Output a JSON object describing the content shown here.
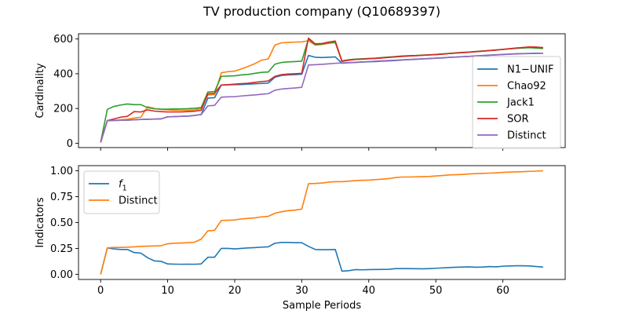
{
  "figure": {
    "title": "TV production company (Q10689397)"
  },
  "chart_data": [
    {
      "type": "line",
      "ylabel": "Cardinality",
      "xlabel": "",
      "xlim": [
        -3.3,
        69.3
      ],
      "ylim": [
        -25,
        630
      ],
      "xticks": [
        0,
        10,
        20,
        30,
        40,
        50,
        60
      ],
      "xtick_labels": [
        "",
        "",
        "",
        "",
        "",
        "",
        ""
      ],
      "yticks": [
        0,
        200,
        400,
        600
      ],
      "ytick_labels": [
        "0",
        "200",
        "400",
        "600"
      ],
      "legend": "right",
      "grid": false,
      "series": [
        {
          "name": "N1−UNIF",
          "color": "#1f77b4",
          "x": [
            0,
            1,
            2,
            3,
            4,
            5,
            6,
            7,
            8,
            9,
            10,
            11,
            12,
            13,
            14,
            15,
            16,
            17,
            18,
            19,
            20,
            21,
            22,
            23,
            24,
            25,
            26,
            27,
            28,
            29,
            30,
            31,
            32,
            33,
            34,
            35,
            36,
            37,
            38,
            39,
            40,
            41,
            42,
            43,
            44,
            45,
            46,
            47,
            48,
            49,
            50,
            51,
            52,
            53,
            54,
            55,
            56,
            57,
            58,
            59,
            60,
            61,
            62,
            63,
            64,
            65,
            66
          ],
          "y": [
            5,
            130,
            131,
            132,
            133,
            135,
            137,
            138,
            139,
            140,
            152,
            153,
            155,
            156,
            160,
            165,
            260,
            262,
            335,
            336,
            337,
            338,
            340,
            342,
            344,
            346,
            380,
            390,
            393,
            395,
            397,
            505,
            495,
            493,
            495,
            497,
            460,
            463,
            465,
            467,
            469,
            470,
            472,
            474,
            476,
            479,
            481,
            483,
            485,
            487,
            489,
            491,
            494,
            496,
            498,
            500,
            503,
            505,
            507,
            509,
            511,
            513,
            515,
            516,
            517,
            518,
            518
          ]
        },
        {
          "name": "Chao92",
          "color": "#ff7f0e",
          "x": [
            0,
            1,
            2,
            3,
            4,
            5,
            6,
            7,
            8,
            9,
            10,
            11,
            12,
            13,
            14,
            15,
            16,
            17,
            18,
            19,
            20,
            21,
            22,
            23,
            24,
            25,
            26,
            27,
            28,
            29,
            30,
            31,
            32,
            33,
            34,
            35,
            36,
            37,
            38,
            39,
            40,
            41,
            42,
            43,
            44,
            45,
            46,
            47,
            48,
            49,
            50,
            51,
            52,
            53,
            54,
            55,
            56,
            57,
            58,
            59,
            60,
            61,
            62,
            63,
            64,
            65,
            66
          ],
          "y": [
            5,
            130,
            132,
            135,
            138,
            145,
            150,
            210,
            200,
            195,
            192,
            190,
            190,
            190,
            192,
            200,
            278,
            280,
            405,
            412,
            415,
            428,
            442,
            458,
            478,
            485,
            565,
            578,
            580,
            582,
            583,
            590,
            565,
            568,
            575,
            578,
            470,
            478,
            482,
            484,
            486,
            488,
            491,
            494,
            497,
            500,
            502,
            504,
            506,
            508,
            510,
            513,
            516,
            519,
            521,
            524,
            527,
            530,
            533,
            536,
            540,
            544,
            548,
            551,
            554,
            553,
            550
          ]
        },
        {
          "name": "Jack1",
          "color": "#2ca02c",
          "x": [
            0,
            1,
            2,
            3,
            4,
            5,
            6,
            7,
            8,
            9,
            10,
            11,
            12,
            13,
            14,
            15,
            16,
            17,
            18,
            19,
            20,
            21,
            22,
            23,
            24,
            25,
            26,
            27,
            28,
            29,
            30,
            31,
            32,
            33,
            34,
            35,
            36,
            37,
            38,
            39,
            40,
            41,
            42,
            43,
            44,
            45,
            46,
            47,
            48,
            49,
            50,
            51,
            52,
            53,
            54,
            55,
            56,
            57,
            58,
            59,
            60,
            61,
            62,
            63,
            64,
            65,
            66
          ],
          "y": [
            5,
            195,
            212,
            220,
            226,
            222,
            222,
            205,
            198,
            196,
            196,
            197,
            198,
            199,
            201,
            205,
            295,
            297,
            385,
            387,
            388,
            393,
            396,
            402,
            408,
            410,
            455,
            465,
            468,
            470,
            472,
            600,
            568,
            570,
            578,
            582,
            474,
            480,
            484,
            486,
            488,
            490,
            493,
            496,
            499,
            502,
            504,
            505,
            507,
            509,
            511,
            514,
            517,
            520,
            523,
            525,
            528,
            531,
            534,
            537,
            540,
            543,
            546,
            548,
            550,
            547,
            545
          ]
        },
        {
          "name": "SOR",
          "color": "#d62728",
          "x": [
            0,
            1,
            2,
            3,
            4,
            5,
            6,
            7,
            8,
            9,
            10,
            11,
            12,
            13,
            14,
            15,
            16,
            17,
            18,
            19,
            20,
            21,
            22,
            23,
            24,
            25,
            26,
            27,
            28,
            29,
            30,
            31,
            32,
            33,
            34,
            35,
            36,
            37,
            38,
            39,
            40,
            41,
            42,
            43,
            44,
            45,
            46,
            47,
            48,
            49,
            50,
            51,
            52,
            53,
            54,
            55,
            56,
            57,
            58,
            59,
            60,
            61,
            62,
            63,
            64,
            65,
            66
          ],
          "y": [
            5,
            130,
            140,
            150,
            155,
            182,
            180,
            192,
            185,
            182,
            180,
            180,
            180,
            182,
            184,
            190,
            285,
            287,
            335,
            337,
            340,
            343,
            345,
            350,
            355,
            358,
            385,
            395,
            398,
            400,
            402,
            605,
            572,
            574,
            582,
            588,
            472,
            478,
            482,
            484,
            486,
            488,
            491,
            494,
            497,
            500,
            502,
            504,
            506,
            508,
            510,
            513,
            516,
            519,
            521,
            524,
            527,
            530,
            533,
            536,
            540,
            544,
            548,
            551,
            554,
            553,
            550
          ]
        },
        {
          "name": "Distinct",
          "color": "#9467bd",
          "x": [
            0,
            1,
            2,
            3,
            4,
            5,
            6,
            7,
            8,
            9,
            10,
            11,
            12,
            13,
            14,
            15,
            16,
            17,
            18,
            19,
            20,
            21,
            22,
            23,
            24,
            25,
            26,
            27,
            28,
            29,
            30,
            31,
            32,
            33,
            34,
            35,
            36,
            37,
            38,
            39,
            40,
            41,
            42,
            43,
            44,
            45,
            46,
            47,
            48,
            49,
            50,
            51,
            52,
            53,
            54,
            55,
            56,
            57,
            58,
            59,
            60,
            61,
            62,
            63,
            64,
            65,
            66
          ],
          "y": [
            5,
            130,
            131,
            132,
            133,
            135,
            137,
            138,
            139,
            140,
            152,
            153,
            155,
            156,
            160,
            165,
            215,
            218,
            265,
            267,
            268,
            272,
            275,
            278,
            282,
            285,
            305,
            312,
            315,
            318,
            322,
            450,
            452,
            454,
            457,
            460,
            462,
            464,
            466,
            468,
            470,
            472,
            474,
            476,
            478,
            480,
            482,
            484,
            486,
            488,
            490,
            492,
            494,
            496,
            498,
            500,
            502,
            504,
            506,
            508,
            510,
            512,
            514,
            515,
            516,
            517,
            518
          ]
        }
      ]
    },
    {
      "type": "line",
      "ylabel": "Indicators",
      "xlabel": "Sample Periods",
      "xlim": [
        -3.3,
        69.3
      ],
      "ylim": [
        -0.05,
        1.05
      ],
      "xticks": [
        0,
        10,
        20,
        30,
        40,
        50,
        60
      ],
      "xtick_labels": [
        "0",
        "10",
        "20",
        "30",
        "40",
        "50",
        "60"
      ],
      "yticks": [
        0.0,
        0.25,
        0.5,
        0.75,
        1.0
      ],
      "ytick_labels": [
        "0.00",
        "0.25",
        "0.50",
        "0.75",
        "1.00"
      ],
      "legend": "top-left",
      "grid": false,
      "series": [
        {
          "name": "f",
          "name_sub": "1",
          "color": "#1f77b4",
          "x": [
            0,
            1,
            2,
            3,
            4,
            5,
            6,
            7,
            8,
            9,
            10,
            11,
            12,
            13,
            14,
            15,
            16,
            17,
            18,
            19,
            20,
            21,
            22,
            23,
            24,
            25,
            26,
            27,
            28,
            29,
            30,
            31,
            32,
            33,
            34,
            35,
            36,
            37,
            38,
            39,
            40,
            41,
            42,
            43,
            44,
            45,
            46,
            47,
            48,
            49,
            50,
            51,
            52,
            53,
            54,
            55,
            56,
            57,
            58,
            59,
            60,
            61,
            62,
            63,
            64,
            65,
            66
          ],
          "y": [
            0.0,
            0.255,
            0.245,
            0.24,
            0.24,
            0.21,
            0.205,
            0.16,
            0.13,
            0.125,
            0.1,
            0.098,
            0.097,
            0.098,
            0.097,
            0.1,
            0.165,
            0.165,
            0.25,
            0.25,
            0.245,
            0.25,
            0.255,
            0.258,
            0.262,
            0.265,
            0.3,
            0.308,
            0.308,
            0.305,
            0.305,
            0.27,
            0.24,
            0.238,
            0.238,
            0.24,
            0.03,
            0.035,
            0.045,
            0.043,
            0.045,
            0.046,
            0.047,
            0.048,
            0.055,
            0.055,
            0.055,
            0.054,
            0.053,
            0.055,
            0.058,
            0.062,
            0.065,
            0.068,
            0.07,
            0.072,
            0.068,
            0.07,
            0.075,
            0.072,
            0.078,
            0.08,
            0.082,
            0.082,
            0.08,
            0.075,
            0.07
          ]
        },
        {
          "name": "Distinct",
          "name_sub": "",
          "color": "#ff7f0e",
          "x": [
            0,
            1,
            2,
            3,
            4,
            5,
            6,
            7,
            8,
            9,
            10,
            11,
            12,
            13,
            14,
            15,
            16,
            17,
            18,
            19,
            20,
            21,
            22,
            23,
            24,
            25,
            26,
            27,
            28,
            29,
            30,
            31,
            32,
            33,
            34,
            35,
            36,
            37,
            38,
            39,
            40,
            41,
            42,
            43,
            44,
            45,
            46,
            47,
            48,
            49,
            50,
            51,
            52,
            53,
            54,
            55,
            56,
            57,
            58,
            59,
            60,
            61,
            62,
            63,
            64,
            65,
            66
          ],
          "y": [
            0.0,
            0.255,
            0.26,
            0.26,
            0.262,
            0.265,
            0.27,
            0.272,
            0.274,
            0.276,
            0.295,
            0.3,
            0.302,
            0.305,
            0.31,
            0.34,
            0.42,
            0.425,
            0.52,
            0.522,
            0.525,
            0.535,
            0.54,
            0.545,
            0.555,
            0.56,
            0.59,
            0.605,
            0.615,
            0.62,
            0.63,
            0.875,
            0.878,
            0.882,
            0.89,
            0.895,
            0.895,
            0.9,
            0.905,
            0.908,
            0.91,
            0.915,
            0.92,
            0.925,
            0.935,
            0.94,
            0.94,
            0.942,
            0.943,
            0.945,
            0.95,
            0.955,
            0.96,
            0.962,
            0.965,
            0.97,
            0.973,
            0.975,
            0.978,
            0.98,
            0.985,
            0.988,
            0.99,
            0.992,
            0.995,
            0.997,
            1.0
          ]
        }
      ]
    }
  ]
}
